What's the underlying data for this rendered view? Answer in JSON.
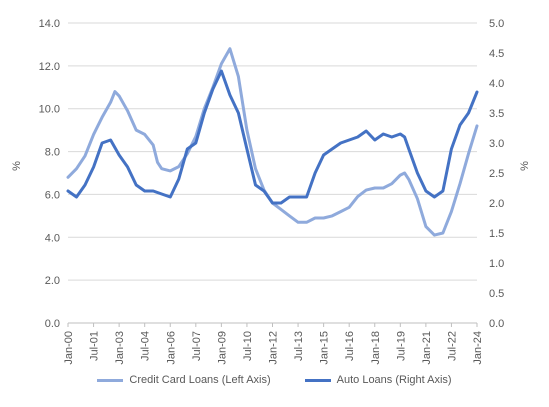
{
  "chart_data": {
    "type": "line",
    "title": "",
    "xlabel": "",
    "ylabel_left": "%",
    "ylabel_right": "%",
    "ylim_left": [
      0,
      14
    ],
    "ylim_right": [
      0,
      5
    ],
    "left_ticks": [
      "0.0",
      "2.0",
      "4.0",
      "6.0",
      "8.0",
      "10.0",
      "12.0",
      "14.0"
    ],
    "right_ticks": [
      "0.0",
      "0.5",
      "1.0",
      "1.5",
      "2.0",
      "2.5",
      "3.0",
      "3.5",
      "4.0",
      "4.5",
      "5.0"
    ],
    "x_tick_labels": [
      "Jan-00",
      "Jul-01",
      "Jan-03",
      "Jul-04",
      "Jan-06",
      "Jul-07",
      "Jan-09",
      "Jul-10",
      "Jan-12",
      "Jul-13",
      "Jan-15",
      "Jul-16",
      "Jan-18",
      "Jul-19",
      "Jan-21",
      "Jul-22",
      "Jan-24"
    ],
    "x_start": "Jan-00",
    "x_end": "Jan-24",
    "grid": "horizontal",
    "legend_position": "bottom",
    "series": [
      {
        "name": "Credit Card Loans (Left Axis)",
        "axis": "left",
        "color": "#8faadc",
        "points": [
          [
            "2000-01",
            6.8
          ],
          [
            "2000-07",
            7.2
          ],
          [
            "2001-01",
            7.8
          ],
          [
            "2001-07",
            8.8
          ],
          [
            "2002-01",
            9.6
          ],
          [
            "2002-07",
            10.3
          ],
          [
            "2002-10",
            10.8
          ],
          [
            "2003-01",
            10.6
          ],
          [
            "2003-07",
            9.9
          ],
          [
            "2004-01",
            9.0
          ],
          [
            "2004-07",
            8.8
          ],
          [
            "2005-01",
            8.3
          ],
          [
            "2005-04",
            7.5
          ],
          [
            "2005-07",
            7.2
          ],
          [
            "2006-01",
            7.1
          ],
          [
            "2006-07",
            7.3
          ],
          [
            "2007-01",
            7.9
          ],
          [
            "2007-07",
            8.7
          ],
          [
            "2008-01",
            10.0
          ],
          [
            "2008-07",
            11.0
          ],
          [
            "2009-01",
            12.1
          ],
          [
            "2009-07",
            12.8
          ],
          [
            "2010-01",
            11.5
          ],
          [
            "2010-07",
            9.0
          ],
          [
            "2011-01",
            7.2
          ],
          [
            "2011-07",
            6.2
          ],
          [
            "2012-01",
            5.6
          ],
          [
            "2012-07",
            5.3
          ],
          [
            "2013-01",
            5.0
          ],
          [
            "2013-07",
            4.7
          ],
          [
            "2014-01",
            4.7
          ],
          [
            "2014-07",
            4.9
          ],
          [
            "2015-01",
            4.9
          ],
          [
            "2015-07",
            5.0
          ],
          [
            "2016-01",
            5.2
          ],
          [
            "2016-07",
            5.4
          ],
          [
            "2017-01",
            5.9
          ],
          [
            "2017-07",
            6.2
          ],
          [
            "2018-01",
            6.3
          ],
          [
            "2018-07",
            6.3
          ],
          [
            "2019-01",
            6.5
          ],
          [
            "2019-07",
            6.9
          ],
          [
            "2019-10",
            7.0
          ],
          [
            "2020-01",
            6.7
          ],
          [
            "2020-07",
            5.8
          ],
          [
            "2021-01",
            4.5
          ],
          [
            "2021-07",
            4.1
          ],
          [
            "2022-01",
            4.2
          ],
          [
            "2022-07",
            5.2
          ],
          [
            "2023-01",
            6.5
          ],
          [
            "2023-07",
            7.9
          ],
          [
            "2024-01",
            9.2
          ]
        ]
      },
      {
        "name": "Auto Loans (Right Axis)",
        "axis": "right",
        "color": "#4472c4",
        "points": [
          [
            "2000-01",
            2.2
          ],
          [
            "2000-07",
            2.1
          ],
          [
            "2001-01",
            2.3
          ],
          [
            "2001-07",
            2.6
          ],
          [
            "2002-01",
            3.0
          ],
          [
            "2002-07",
            3.05
          ],
          [
            "2003-01",
            2.8
          ],
          [
            "2003-07",
            2.6
          ],
          [
            "2004-01",
            2.3
          ],
          [
            "2004-07",
            2.2
          ],
          [
            "2005-01",
            2.2
          ],
          [
            "2005-07",
            2.15
          ],
          [
            "2006-01",
            2.1
          ],
          [
            "2006-07",
            2.4
          ],
          [
            "2007-01",
            2.9
          ],
          [
            "2007-07",
            3.0
          ],
          [
            "2008-01",
            3.5
          ],
          [
            "2008-07",
            3.9
          ],
          [
            "2009-01",
            4.2
          ],
          [
            "2009-07",
            3.8
          ],
          [
            "2010-01",
            3.5
          ],
          [
            "2010-07",
            2.9
          ],
          [
            "2011-01",
            2.3
          ],
          [
            "2011-07",
            2.2
          ],
          [
            "2012-01",
            2.0
          ],
          [
            "2012-07",
            2.0
          ],
          [
            "2013-01",
            2.1
          ],
          [
            "2013-07",
            2.1
          ],
          [
            "2014-01",
            2.1
          ],
          [
            "2014-07",
            2.5
          ],
          [
            "2015-01",
            2.8
          ],
          [
            "2015-07",
            2.9
          ],
          [
            "2016-01",
            3.0
          ],
          [
            "2016-07",
            3.05
          ],
          [
            "2017-01",
            3.1
          ],
          [
            "2017-07",
            3.2
          ],
          [
            "2018-01",
            3.05
          ],
          [
            "2018-07",
            3.15
          ],
          [
            "2019-01",
            3.1
          ],
          [
            "2019-07",
            3.15
          ],
          [
            "2019-10",
            3.1
          ],
          [
            "2020-01",
            2.9
          ],
          [
            "2020-07",
            2.5
          ],
          [
            "2021-01",
            2.2
          ],
          [
            "2021-07",
            2.1
          ],
          [
            "2022-01",
            2.2
          ],
          [
            "2022-07",
            2.9
          ],
          [
            "2023-01",
            3.3
          ],
          [
            "2023-07",
            3.5
          ],
          [
            "2024-01",
            3.85
          ]
        ]
      }
    ]
  }
}
